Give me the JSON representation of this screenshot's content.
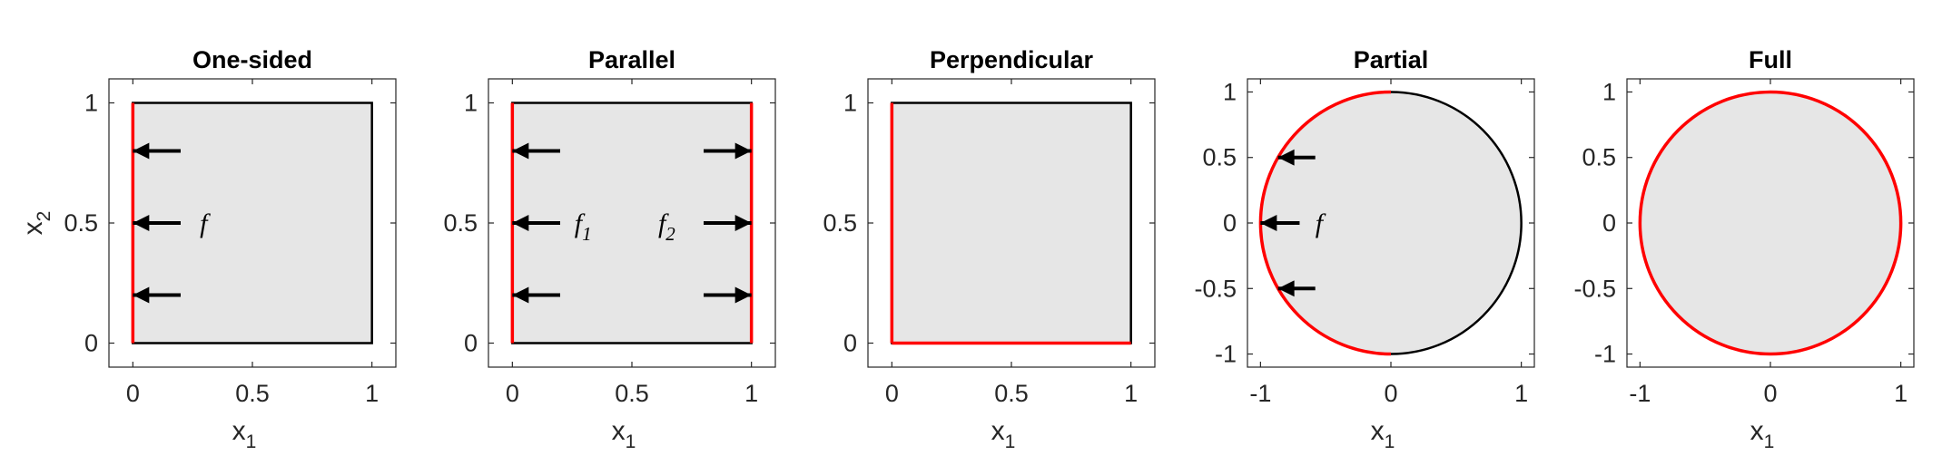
{
  "colors": {
    "domain_fill": "#e6e6e6",
    "boundary": "#000000",
    "highlight": "#ff0000",
    "axis": "#262626"
  },
  "panels": [
    {
      "title": "One-sided",
      "shape": "square",
      "xlim": [
        -0.1,
        1.1
      ],
      "ylim": [
        -0.1,
        1.1
      ],
      "xticks": [
        "0",
        "0.5",
        "1"
      ],
      "xtick_values": [
        0,
        0.5,
        1
      ],
      "yticks": [
        "0",
        "0.5",
        "1"
      ],
      "ytick_values": [
        0,
        0.5,
        1
      ],
      "xlabel": "x",
      "xlabel_sub": "1",
      "ylabel": "x",
      "ylabel_sub": "2",
      "red_edges": [
        "left"
      ],
      "arrows": [
        {
          "x1": 0.2,
          "x2": 0.0,
          "y": 0.8
        },
        {
          "x1": 0.2,
          "x2": 0.0,
          "y": 0.5
        },
        {
          "x1": 0.2,
          "x2": 0.0,
          "y": 0.2
        }
      ],
      "labels": [
        {
          "text": "f",
          "sub": "",
          "x": 0.28,
          "y": 0.5
        }
      ]
    },
    {
      "title": "Parallel",
      "shape": "square",
      "xlim": [
        -0.1,
        1.1
      ],
      "ylim": [
        -0.1,
        1.1
      ],
      "xticks": [
        "0",
        "0.5",
        "1"
      ],
      "xtick_values": [
        0,
        0.5,
        1
      ],
      "yticks": [
        "0",
        "0.5",
        "1"
      ],
      "ytick_values": [
        0,
        0.5,
        1
      ],
      "xlabel": "x",
      "xlabel_sub": "1",
      "ylabel": "",
      "ylabel_sub": "",
      "red_edges": [
        "left",
        "right"
      ],
      "arrows": [
        {
          "x1": 0.2,
          "x2": 0.0,
          "y": 0.8
        },
        {
          "x1": 0.2,
          "x2": 0.0,
          "y": 0.5
        },
        {
          "x1": 0.2,
          "x2": 0.0,
          "y": 0.2
        },
        {
          "x1": 0.8,
          "x2": 1.0,
          "y": 0.8
        },
        {
          "x1": 0.8,
          "x2": 1.0,
          "y": 0.5
        },
        {
          "x1": 0.8,
          "x2": 1.0,
          "y": 0.2
        }
      ],
      "labels": [
        {
          "text": "f",
          "sub": "1",
          "x": 0.26,
          "y": 0.5
        },
        {
          "text": "f",
          "sub": "2",
          "x": 0.61,
          "y": 0.5
        }
      ]
    },
    {
      "title": "Perpendicular",
      "shape": "square",
      "xlim": [
        -0.1,
        1.1
      ],
      "ylim": [
        -0.1,
        1.1
      ],
      "xticks": [
        "0",
        "0.5",
        "1"
      ],
      "xtick_values": [
        0,
        0.5,
        1
      ],
      "yticks": [
        "0",
        "0.5",
        "1"
      ],
      "ytick_values": [
        0,
        0.5,
        1
      ],
      "xlabel": "x",
      "xlabel_sub": "1",
      "ylabel": "",
      "ylabel_sub": "",
      "red_edges": [
        "left",
        "bottom"
      ],
      "arrows": [],
      "labels": []
    },
    {
      "title": "Partial",
      "shape": "circle",
      "xlim": [
        -1.1,
        1.1
      ],
      "ylim": [
        -1.1,
        1.1
      ],
      "xticks": [
        "-1",
        "0",
        "1"
      ],
      "xtick_values": [
        -1,
        0,
        1
      ],
      "yticks": [
        "-1",
        "-0.5",
        "0",
        "0.5",
        "1"
      ],
      "ytick_values": [
        -1,
        -0.5,
        0,
        0.5,
        1
      ],
      "xlabel": "x",
      "xlabel_sub": "1",
      "ylabel": "",
      "ylabel_sub": "",
      "red_arc_deg": [
        90,
        270
      ],
      "arrows": [
        {
          "x1": -0.58,
          "x2": -0.866,
          "y": 0.5
        },
        {
          "x1": -0.7,
          "x2": -1.0,
          "y": 0.0
        },
        {
          "x1": -0.58,
          "x2": -0.866,
          "y": -0.5
        }
      ],
      "labels": [
        {
          "text": "f",
          "sub": "",
          "x": -0.58,
          "y": 0.0
        }
      ]
    },
    {
      "title": "Full",
      "shape": "circle",
      "xlim": [
        -1.1,
        1.1
      ],
      "ylim": [
        -1.1,
        1.1
      ],
      "xticks": [
        "-1",
        "0",
        "1"
      ],
      "xtick_values": [
        -1,
        0,
        1
      ],
      "yticks": [
        "-1",
        "-0.5",
        "0",
        "0.5",
        "1"
      ],
      "ytick_values": [
        -1,
        -0.5,
        0,
        0.5,
        1
      ],
      "xlabel": "x",
      "xlabel_sub": "1",
      "ylabel": "",
      "ylabel_sub": "",
      "red_arc_deg": [
        0,
        360
      ],
      "arrows": [],
      "labels": []
    }
  ]
}
